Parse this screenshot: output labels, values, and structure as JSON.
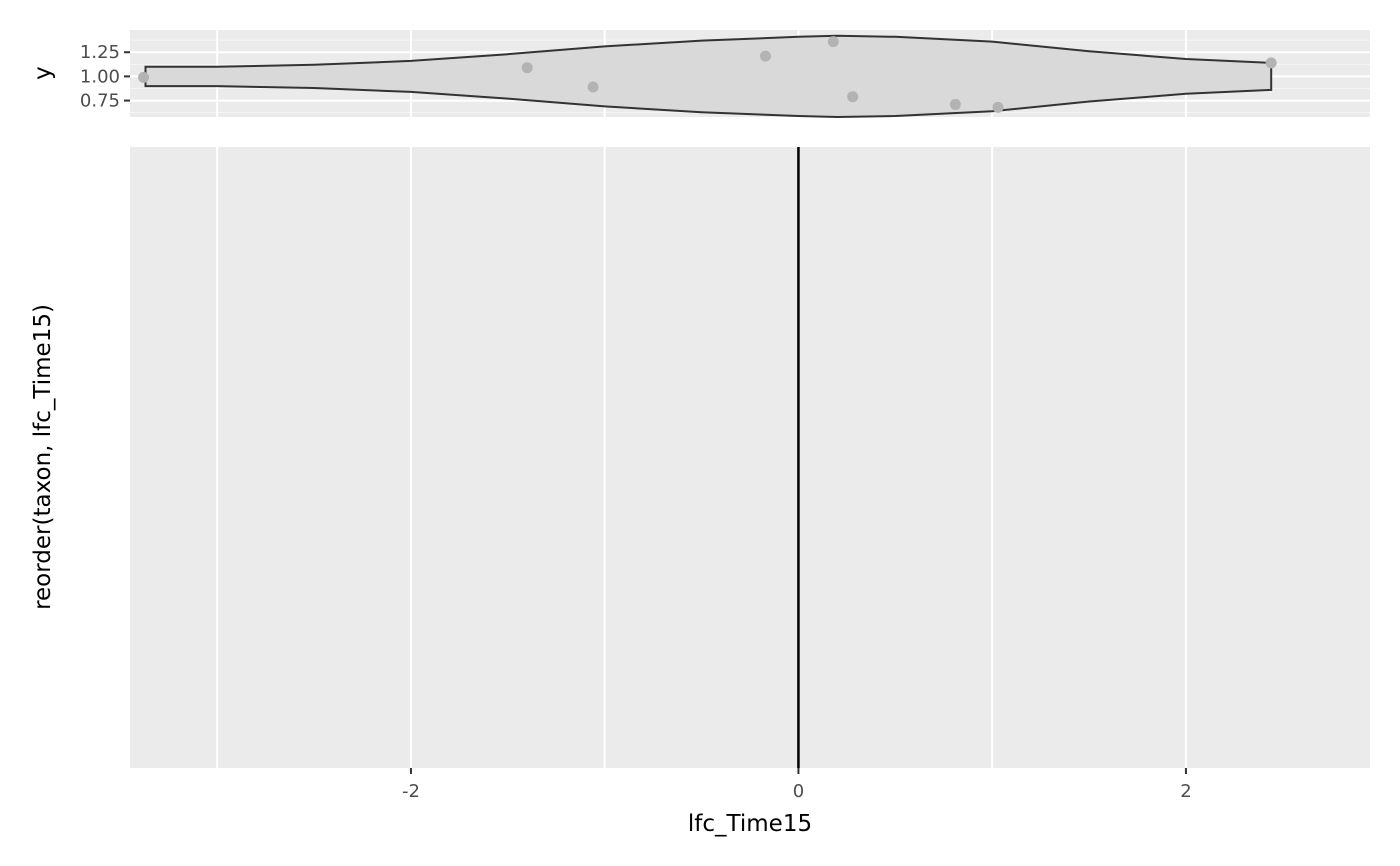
{
  "chart_data": [
    {
      "type": "violin",
      "panel": "top",
      "xlabel": "",
      "ylabel": "y",
      "xlim": [
        -3.45,
        2.95
      ],
      "ylim": [
        0.58,
        1.48
      ],
      "x_gridlines": [
        -3,
        -2,
        -1,
        0,
        1,
        2
      ],
      "y_ticks": [
        0.75,
        1.0,
        1.25
      ],
      "y_tick_labels": [
        "0.75",
        "1.00",
        "1.25"
      ],
      "y_minor_gridlines": [
        0.625,
        0.875,
        1.125,
        1.375
      ],
      "grid": true,
      "violin": {
        "center_y": 1.0,
        "half_width_profile": [
          {
            "x": -3.37,
            "w": 0.1
          },
          {
            "x": -3.0,
            "w": 0.1
          },
          {
            "x": -2.5,
            "w": 0.12
          },
          {
            "x": -2.0,
            "w": 0.16
          },
          {
            "x": -1.5,
            "w": 0.23
          },
          {
            "x": -1.0,
            "w": 0.31
          },
          {
            "x": -0.5,
            "w": 0.37
          },
          {
            "x": 0.0,
            "w": 0.41
          },
          {
            "x": 0.2,
            "w": 0.42
          },
          {
            "x": 0.5,
            "w": 0.41
          },
          {
            "x": 1.0,
            "w": 0.36
          },
          {
            "x": 1.5,
            "w": 0.26
          },
          {
            "x": 2.0,
            "w": 0.18
          },
          {
            "x": 2.44,
            "w": 0.14
          }
        ],
        "fill": "#d9d9d9",
        "stroke": "#333333"
      },
      "points": [
        {
          "x": -3.38,
          "y": 0.99
        },
        {
          "x": -1.4,
          "y": 1.09
        },
        {
          "x": -1.06,
          "y": 0.89
        },
        {
          "x": -0.17,
          "y": 1.21
        },
        {
          "x": 0.18,
          "y": 1.36
        },
        {
          "x": 0.28,
          "y": 0.79
        },
        {
          "x": 0.81,
          "y": 0.71
        },
        {
          "x": 1.03,
          "y": 0.68
        },
        {
          "x": 2.44,
          "y": 1.14
        }
      ],
      "point_color": "#b3b3b3"
    },
    {
      "type": "bar",
      "panel": "main",
      "xlabel": "lfc_Time15",
      "ylabel": "reorder(taxon, lfc_Time15)",
      "xlim": [
        -3.45,
        2.95
      ],
      "x_ticks": [
        -2,
        0,
        2
      ],
      "x_tick_labels": [
        "-2",
        "0",
        "2"
      ],
      "x_gridlines": [
        -3,
        -2,
        -1,
        0,
        1,
        2
      ],
      "grid": true,
      "reference_line": {
        "x": 0,
        "color": "#000000"
      },
      "categories": [],
      "values": []
    }
  ],
  "colors": {
    "panel_background": "#ebebeb",
    "grid_major": "#ffffff",
    "grid_minor": "#f5f5f5",
    "tick_text": "#4d4d4d",
    "title_text": "#000000"
  }
}
